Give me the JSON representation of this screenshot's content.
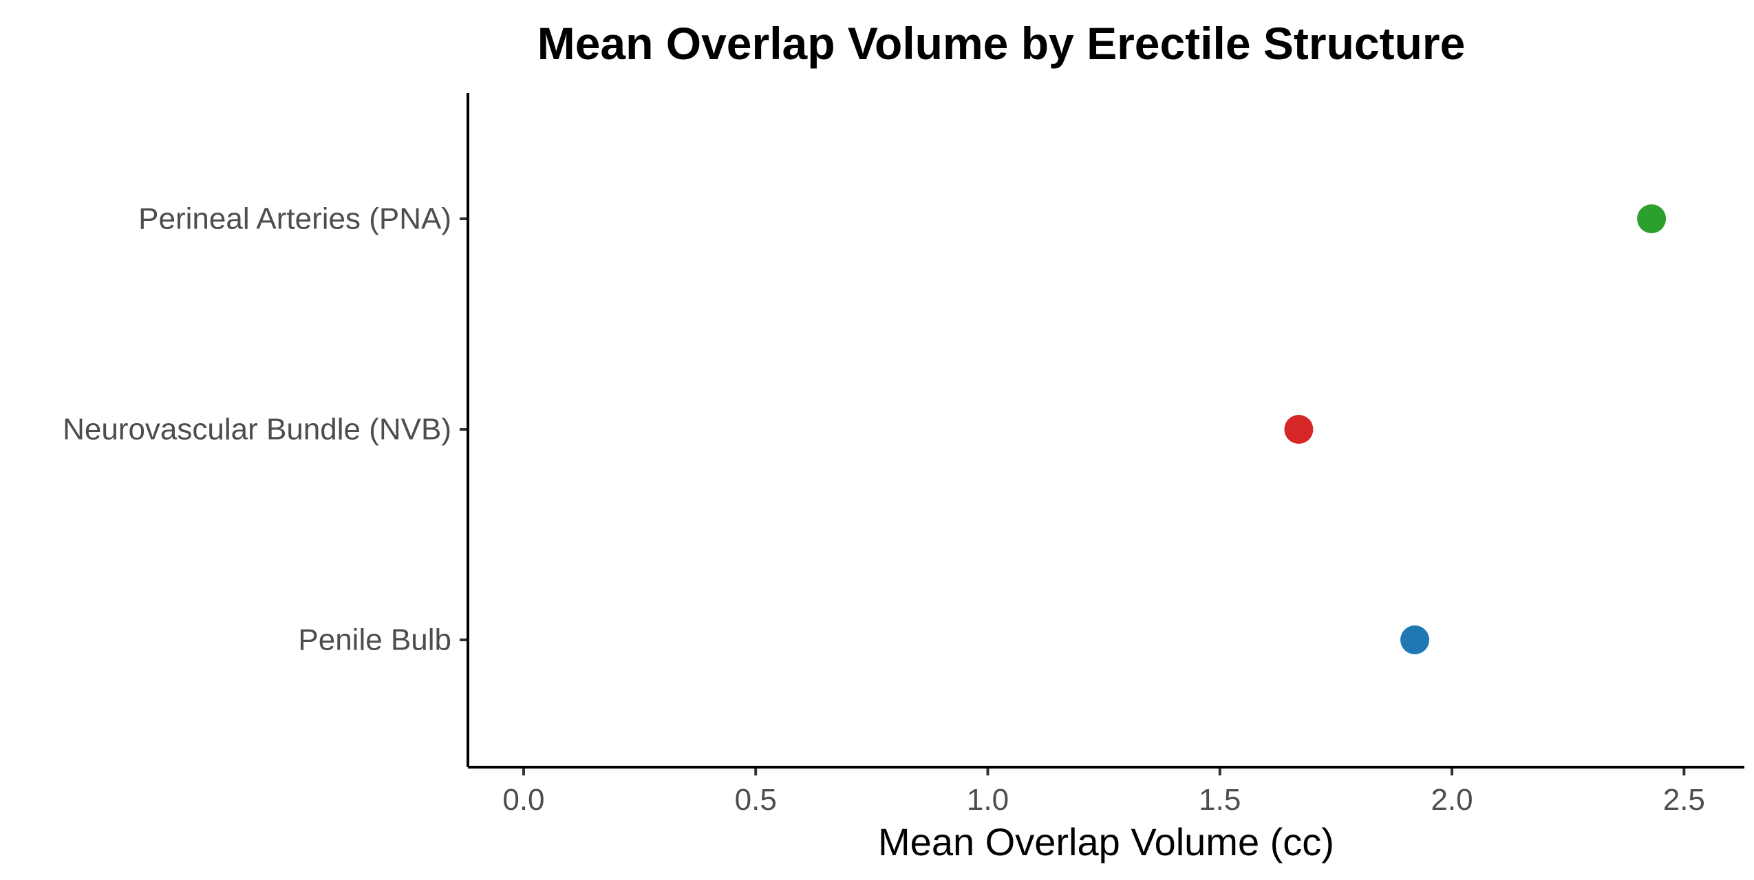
{
  "chart_data": {
    "type": "scatter",
    "title": "Mean Overlap Volume by Erectile Structure",
    "xlabel": "Mean Overlap Volume (cc)",
    "ylabel": "",
    "xlim": [
      -0.12,
      2.63
    ],
    "x_ticks": [
      0.0,
      0.5,
      1.0,
      1.5,
      2.0,
      2.5
    ],
    "x_tick_labels": [
      "0.0",
      "0.5",
      "1.0",
      "1.5",
      "2.0",
      "2.5"
    ],
    "categories": [
      "Perineal Arteries (PNA)",
      "Neurovascular Bundle (NVB)",
      "Penile Bulb"
    ],
    "values": [
      2.43,
      1.67,
      1.92
    ],
    "colors": [
      "#2ca02c",
      "#d62728",
      "#1f77b4"
    ],
    "grid": false,
    "legend": "none"
  }
}
